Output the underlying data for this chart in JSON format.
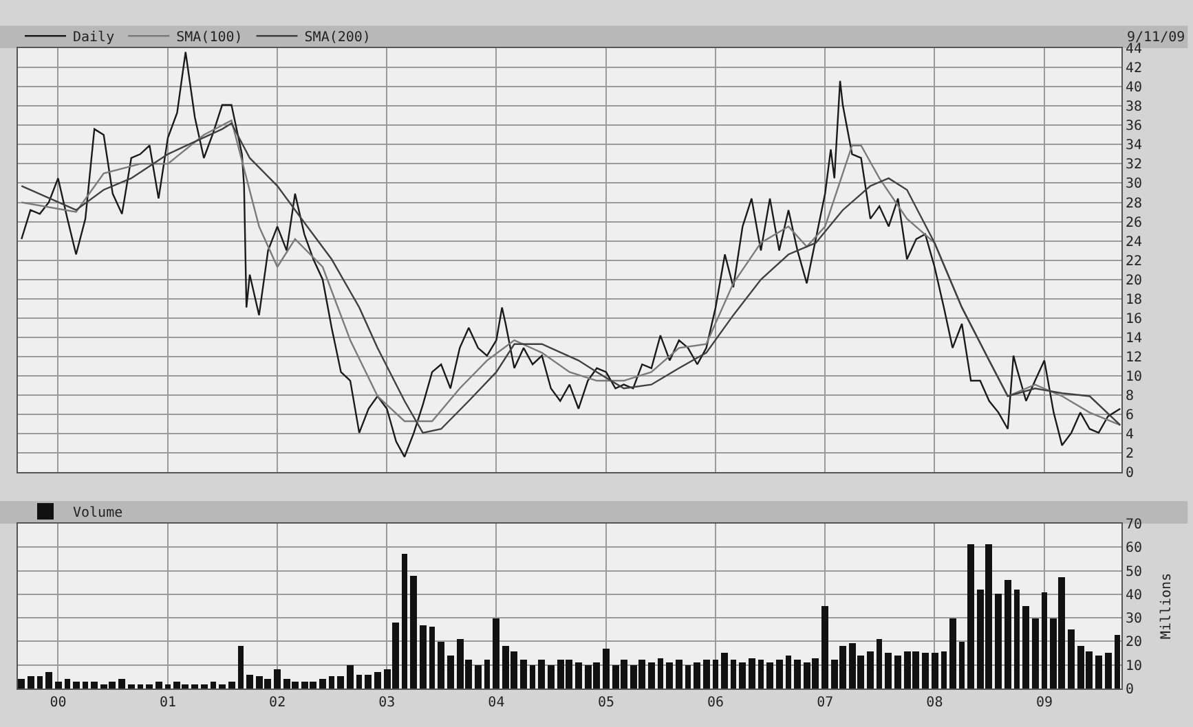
{
  "chart_data": [
    {
      "type": "line",
      "annotations": [
        "9/11/09"
      ],
      "legend": "top left",
      "grid": true,
      "tick_labels": "y",
      "marker": "none",
      "line_style": "solid",
      "xlim": [
        "1999-08-20",
        "2009-09-15"
      ],
      "ylim": [
        0,
        44
      ],
      "yticks": [
        0,
        2,
        4,
        6,
        8,
        10,
        12,
        14,
        16,
        18,
        20,
        22,
        24,
        26,
        28,
        30,
        32,
        34,
        36,
        38,
        40,
        42,
        44
      ],
      "series": [
        {
          "name": "Daily",
          "color": "#1a1a1a",
          "x": [
            "1999-09-01",
            "1999-10-01",
            "1999-11-01",
            "1999-12-01",
            "2000-01-01",
            "2000-02-01",
            "2000-03-01",
            "2000-04-01",
            "2000-05-01",
            "2000-06-01",
            "2000-07-01",
            "2000-08-01",
            "2000-09-01",
            "2000-10-01",
            "2000-11-01",
            "2000-12-01",
            "2001-01-01",
            "2001-02-01",
            "2001-03-01",
            "2001-04-01",
            "2001-05-01",
            "2001-06-01",
            "2001-07-01",
            "2001-08-01",
            "2001-09-05",
            "2001-09-12",
            "2001-09-20",
            "2001-10-01",
            "2001-11-01",
            "2001-12-01",
            "2002-01-01",
            "2002-02-01",
            "2002-03-01",
            "2002-04-01",
            "2002-05-01",
            "2002-06-01",
            "2002-07-01",
            "2002-08-01",
            "2002-09-01",
            "2002-10-01",
            "2002-11-01",
            "2002-12-01",
            "2003-01-01",
            "2003-02-01",
            "2003-03-01",
            "2003-04-01",
            "2003-05-01",
            "2003-06-01",
            "2003-07-01",
            "2003-08-01",
            "2003-09-01",
            "2003-10-01",
            "2003-11-01",
            "2003-12-01",
            "2004-01-01",
            "2004-01-20",
            "2004-02-01",
            "2004-03-01",
            "2004-04-01",
            "2004-05-01",
            "2004-06-01",
            "2004-07-01",
            "2004-08-01",
            "2004-09-01",
            "2004-10-01",
            "2004-11-01",
            "2004-12-01",
            "2005-01-01",
            "2005-02-01",
            "2005-03-01",
            "2005-04-01",
            "2005-05-01",
            "2005-06-01",
            "2005-07-01",
            "2005-08-01",
            "2005-09-01",
            "2005-10-01",
            "2005-11-01",
            "2005-12-01",
            "2006-01-01",
            "2006-02-01",
            "2006-03-01",
            "2006-04-01",
            "2006-05-01",
            "2006-06-01",
            "2006-07-01",
            "2006-08-01",
            "2006-09-01",
            "2006-10-01",
            "2006-11-01",
            "2006-12-01",
            "2007-01-01",
            "2007-01-20",
            "2007-02-01",
            "2007-02-20",
            "2007-03-01",
            "2007-04-01",
            "2007-05-01",
            "2007-06-01",
            "2007-07-01",
            "2007-08-01",
            "2007-09-01",
            "2007-10-01",
            "2007-11-01",
            "2007-12-01",
            "2008-01-01",
            "2008-02-01",
            "2008-03-01",
            "2008-04-01",
            "2008-05-01",
            "2008-06-01",
            "2008-07-01",
            "2008-08-01",
            "2008-09-01",
            "2008-09-20",
            "2008-10-01",
            "2008-11-01",
            "2008-12-01",
            "2009-01-01",
            "2009-02-01",
            "2009-03-01",
            "2009-04-01",
            "2009-05-01",
            "2009-06-01",
            "2009-07-01",
            "2009-08-01",
            "2009-09-11"
          ],
          "values": [
            24.2,
            27.2,
            26.8,
            28,
            30.5,
            26.3,
            22.6,
            26.3,
            35.6,
            35,
            28.9,
            26.8,
            32.6,
            33,
            33.9,
            28.4,
            34.7,
            37.3,
            43.6,
            36.8,
            32.6,
            35.2,
            38.1,
            38.1,
            33,
            29.7,
            17.1,
            20.5,
            16.3,
            23,
            25.5,
            23,
            28.9,
            24.7,
            22.1,
            20,
            15,
            10.4,
            9.5,
            4.1,
            6.6,
            7.9,
            6.6,
            3.2,
            1.6,
            4.1,
            7,
            10.4,
            11.2,
            8.7,
            12.9,
            15,
            12.9,
            12.1,
            13.7,
            17.1,
            15.4,
            10.8,
            12.9,
            11.2,
            12.1,
            8.7,
            7.4,
            9.1,
            6.6,
            9.5,
            10.8,
            10.4,
            8.7,
            9.1,
            8.7,
            11.2,
            10.8,
            14.2,
            11.6,
            13.7,
            12.9,
            11.2,
            12.9,
            17.1,
            22.6,
            19.2,
            25.5,
            28.4,
            23,
            28.4,
            23,
            27.2,
            23,
            19.6,
            24.2,
            28.9,
            33.5,
            30.5,
            40.6,
            38.1,
            33,
            32.6,
            26.3,
            27.6,
            25.5,
            28.4,
            22.1,
            24.2,
            24.7,
            21.3,
            17.1,
            12.9,
            15.4,
            9.5,
            9.5,
            7.4,
            6.2,
            4.5,
            12.1,
            10.8,
            7.4,
            9.5,
            11.6,
            6.2,
            2.8,
            4.1,
            6.2,
            4.5,
            4.1,
            5.8,
            6.6
          ]
        },
        {
          "name": "SMA(100)",
          "color": "#7a7a7a",
          "x": [
            "1999-09-01",
            "2000-03-01",
            "2000-06-01",
            "2000-10-01",
            "2001-01-01",
            "2001-05-01",
            "2001-08-01",
            "2001-11-01",
            "2002-01-01",
            "2002-03-01",
            "2002-06-01",
            "2002-09-01",
            "2002-12-01",
            "2003-03-01",
            "2003-06-01",
            "2003-09-01",
            "2003-12-01",
            "2004-03-01",
            "2004-06-01",
            "2004-09-01",
            "2004-12-01",
            "2005-03-01",
            "2005-06-01",
            "2005-09-01",
            "2005-12-01",
            "2006-03-01",
            "2006-06-01",
            "2006-09-01",
            "2006-11-01",
            "2007-01-01",
            "2007-04-01",
            "2007-05-01",
            "2007-07-01",
            "2007-10-01",
            "2008-01-01",
            "2008-04-01",
            "2008-07-01",
            "2008-09-01",
            "2008-12-01",
            "2009-03-01",
            "2009-06-01",
            "2009-09-11"
          ],
          "values": [
            28,
            27,
            31,
            32,
            32,
            35,
            36.5,
            25.5,
            21.3,
            24.2,
            21.3,
            13.7,
            7.9,
            5.3,
            5.3,
            8.7,
            11.6,
            13.7,
            12.4,
            10.4,
            9.5,
            9.5,
            10.4,
            12.9,
            13.3,
            19.6,
            23.8,
            25.5,
            23.4,
            25.5,
            33.9,
            33.9,
            30.5,
            26.3,
            23.8,
            17.1,
            11.6,
            7.9,
            9.1,
            7.9,
            6.2,
            4.9
          ]
        },
        {
          "name": "SMA(200)",
          "color": "#404040",
          "x": [
            "1999-09-01",
            "2000-03-01",
            "2000-06-01",
            "2000-09-01",
            "2001-01-01",
            "2001-04-01",
            "2001-07-01",
            "2001-08-01",
            "2001-10-01",
            "2002-01-01",
            "2002-04-01",
            "2002-07-01",
            "2002-10-01",
            "2002-12-01",
            "2003-03-01",
            "2003-05-01",
            "2003-07-01",
            "2003-10-01",
            "2004-01-01",
            "2004-03-01",
            "2004-06-01",
            "2004-10-01",
            "2004-12-01",
            "2005-03-01",
            "2005-06-01",
            "2005-09-01",
            "2005-12-01",
            "2006-03-01",
            "2006-06-01",
            "2006-09-01",
            "2006-12-01",
            "2007-03-01",
            "2007-06-01",
            "2007-08-01",
            "2007-10-01",
            "2008-01-01",
            "2008-04-01",
            "2008-07-01",
            "2008-09-01",
            "2008-12-01",
            "2009-03-01",
            "2009-06-01",
            "2009-09-11"
          ],
          "values": [
            29.7,
            27.2,
            29.3,
            30.5,
            33,
            34.3,
            35.6,
            36.2,
            32.6,
            29.7,
            25.9,
            22.1,
            17.1,
            12.9,
            7.4,
            4.1,
            4.5,
            7.4,
            10.4,
            13.3,
            13.3,
            11.6,
            10.4,
            8.7,
            9.1,
            10.8,
            12.4,
            16.3,
            20,
            22.6,
            23.8,
            27.2,
            29.7,
            30.5,
            29.3,
            23.8,
            17.1,
            11.6,
            7.9,
            8.7,
            8.2,
            7.9,
            4.9
          ]
        }
      ]
    },
    {
      "type": "bar",
      "ylabel": "Millions",
      "legend": "top left",
      "grid": true,
      "xlim": [
        "1999-08-20",
        "2009-09-15"
      ],
      "xticks": [
        {
          "value": "2000-01-01",
          "label": "00"
        },
        {
          "value": "2001-01-01",
          "label": "01"
        },
        {
          "value": "2002-01-01",
          "label": "02"
        },
        {
          "value": "2003-01-01",
          "label": "03"
        },
        {
          "value": "2004-01-01",
          "label": "04"
        },
        {
          "value": "2005-01-01",
          "label": "05"
        },
        {
          "value": "2006-01-01",
          "label": "06"
        },
        {
          "value": "2007-01-01",
          "label": "07"
        },
        {
          "value": "2008-01-01",
          "label": "08"
        },
        {
          "value": "2009-01-01",
          "label": "09"
        }
      ],
      "ylim": [
        0,
        70
      ],
      "yticks": [
        0,
        10,
        20,
        30,
        40,
        50,
        60,
        70
      ],
      "series": [
        {
          "name": "Volume",
          "color": "#111111",
          "x": [
            "1999-09",
            "1999-10",
            "1999-11",
            "1999-12",
            "2000-01",
            "2000-02",
            "2000-03",
            "2000-04",
            "2000-05",
            "2000-06",
            "2000-07",
            "2000-08",
            "2000-09",
            "2000-10",
            "2000-11",
            "2000-12",
            "2001-01",
            "2001-02",
            "2001-03",
            "2001-04",
            "2001-05",
            "2001-06",
            "2001-07",
            "2001-08",
            "2001-09",
            "2001-10",
            "2001-11",
            "2001-12",
            "2002-01",
            "2002-02",
            "2002-03",
            "2002-04",
            "2002-05",
            "2002-06",
            "2002-07",
            "2002-08",
            "2002-09",
            "2002-10",
            "2002-11",
            "2002-12",
            "2003-01",
            "2003-02",
            "2003-03",
            "2003-04",
            "2003-05",
            "2003-06",
            "2003-07",
            "2003-08",
            "2003-09",
            "2003-10",
            "2003-11",
            "2003-12",
            "2004-01",
            "2004-02",
            "2004-03",
            "2004-04",
            "2004-05",
            "2004-06",
            "2004-07",
            "2004-08",
            "2004-09",
            "2004-10",
            "2004-11",
            "2004-12",
            "2005-01",
            "2005-02",
            "2005-03",
            "2005-04",
            "2005-05",
            "2005-06",
            "2005-07",
            "2005-08",
            "2005-09",
            "2005-10",
            "2005-11",
            "2005-12",
            "2006-01",
            "2006-02",
            "2006-03",
            "2006-04",
            "2006-05",
            "2006-06",
            "2006-07",
            "2006-08",
            "2006-09",
            "2006-10",
            "2006-11",
            "2006-12",
            "2007-01",
            "2007-02",
            "2007-03",
            "2007-04",
            "2007-05",
            "2007-06",
            "2007-07",
            "2007-08",
            "2007-09",
            "2007-10",
            "2007-11",
            "2007-12",
            "2008-01",
            "2008-02",
            "2008-03",
            "2008-04",
            "2008-05",
            "2008-06",
            "2008-07",
            "2008-08",
            "2008-09",
            "2008-10",
            "2008-11",
            "2008-12",
            "2009-01",
            "2009-02",
            "2009-03",
            "2009-04",
            "2009-05",
            "2009-06",
            "2009-07",
            "2009-08",
            "2009-09"
          ],
          "values": [
            4,
            5,
            5,
            7,
            3,
            4,
            3,
            3,
            3,
            2,
            3,
            4,
            2,
            2,
            2,
            3,
            2,
            3,
            2,
            2,
            2,
            3,
            2,
            3,
            18,
            6,
            5,
            4,
            8,
            4,
            3,
            3,
            3,
            4,
            5,
            5,
            10,
            6,
            6,
            7,
            8,
            28,
            57,
            48,
            27,
            26,
            20,
            14,
            21,
            12,
            10,
            12,
            30,
            18,
            16,
            12,
            10,
            12,
            10,
            12,
            12,
            11,
            10,
            11,
            17,
            10,
            12,
            10,
            12,
            11,
            13,
            11,
            12,
            10,
            11,
            12,
            12,
            15,
            12,
            11,
            13,
            12,
            11,
            12,
            14,
            12,
            11,
            13,
            35,
            12,
            18,
            19,
            14,
            16,
            21,
            15,
            14,
            16,
            16,
            15,
            15,
            16,
            30,
            20,
            61,
            42,
            61,
            40,
            46,
            42,
            35,
            30,
            41,
            30,
            47,
            25,
            18,
            16,
            14,
            15,
            23
          ]
        }
      ]
    }
  ]
}
